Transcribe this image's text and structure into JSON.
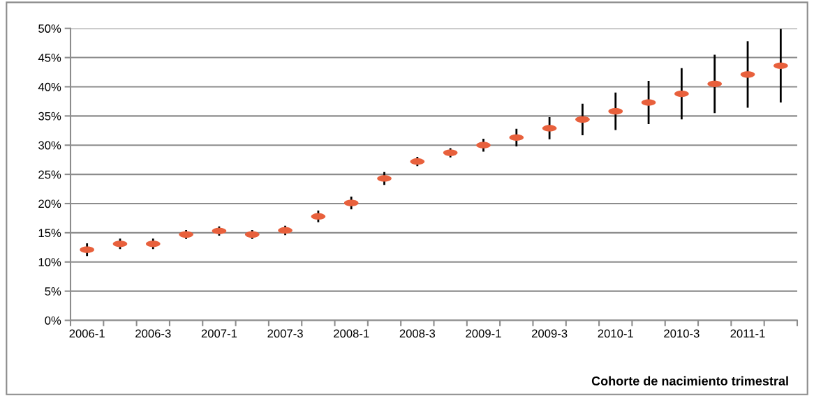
{
  "chart_data": {
    "type": "scatter",
    "xlabel": "Cohorte de nacimiento trimestral",
    "categories": [
      "2006-1",
      null,
      "2006-3",
      null,
      "2007-1",
      null,
      "2007-3",
      null,
      "2008-1",
      null,
      "2008-3",
      null,
      "2009-1",
      null,
      "2009-3",
      null,
      "2010-1",
      null,
      "2010-3",
      null,
      "2011-1",
      null
    ],
    "values": [
      12.1,
      13.1,
      13.1,
      14.7,
      15.3,
      14.7,
      15.4,
      17.8,
      20.1,
      24.3,
      27.2,
      28.7,
      30.0,
      31.3,
      32.9,
      34.4,
      35.8,
      37.3,
      38.8,
      40.5,
      42.1,
      43.6
    ],
    "errors": [
      1.1,
      0.9,
      0.9,
      0.75,
      0.8,
      0.75,
      0.8,
      1.0,
      1.1,
      1.1,
      0.8,
      0.8,
      1.1,
      1.5,
      1.9,
      2.7,
      3.2,
      3.7,
      4.4,
      5.0,
      5.7,
      6.3
    ],
    "color": "#e8603c",
    "ylim": [
      0,
      50
    ],
    "yticks": [
      {
        "value": 0,
        "label": "0%"
      },
      {
        "value": 5,
        "label": "5%"
      },
      {
        "value": 10,
        "label": "10%"
      },
      {
        "value": 15,
        "label": "15%"
      },
      {
        "value": 20,
        "label": "20%"
      },
      {
        "value": 25,
        "label": "25%"
      },
      {
        "value": 30,
        "label": "30%"
      },
      {
        "value": 35,
        "label": "35%"
      },
      {
        "value": 40,
        "label": "40%"
      },
      {
        "value": 45,
        "label": "45%"
      },
      {
        "value": 50,
        "label": "50%"
      }
    ],
    "grid": "y"
  }
}
